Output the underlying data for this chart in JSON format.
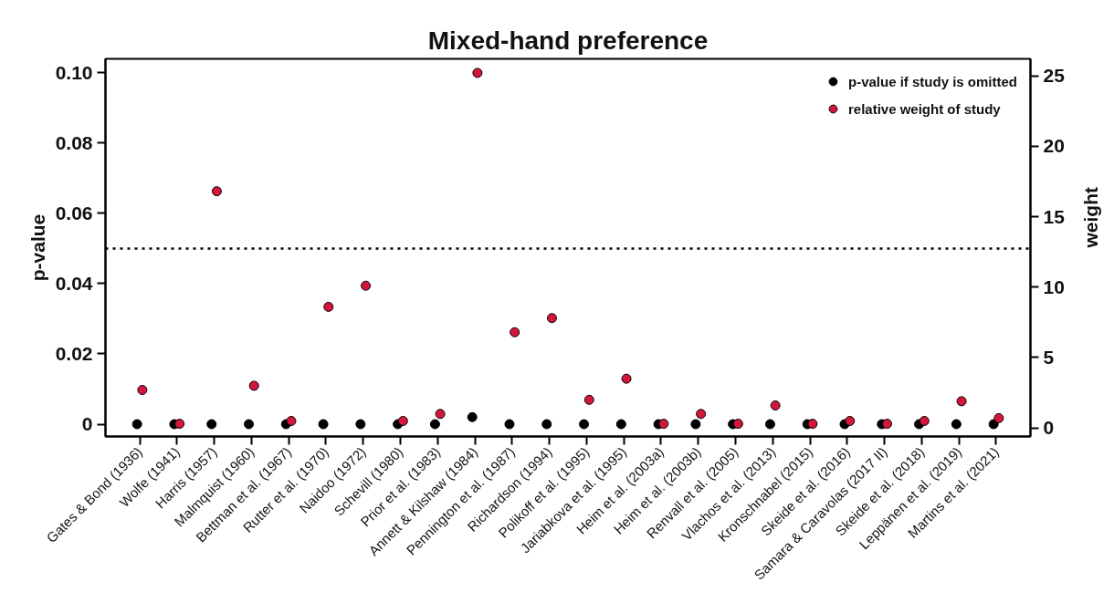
{
  "chart_data": {
    "type": "scatter",
    "title": "Mixed-hand preference",
    "ylabel": "p-value",
    "y2label": "weight",
    "categories": [
      "Gates & Bond (1936)",
      "Wolfe (1941)",
      "Harris (1957)",
      "Malmquist (1960)",
      "Bettman et al. (1967)",
      "Rutter et al. (1970)",
      "Naidoo (1972)",
      "Schevill (1980)",
      "Prior et al. (1983)",
      "Annett & Kilshaw (1984)",
      "Pennington et al. (1987)",
      "Richardson (1994)",
      "Polikoff et al. (1995)",
      "Jariabkova et al. (1995)",
      "Heim et al. (2003a)",
      "Heim et al. (2003b)",
      "Renvall et al. (2005)",
      "Vlachos et al. (2013)",
      "Kronschnabel (2015)",
      "Skeide et al. (2016)",
      "Samara & Caravolas (2017 II)",
      "Skeide et al. (2018)",
      "Leppänen et al. (2019)",
      "Martins et al. (2021)"
    ],
    "series": [
      {
        "name": "p-value if study is omitted",
        "color": "#000000",
        "values": [
          0,
          0,
          0,
          0,
          0,
          0,
          0,
          0,
          0,
          0.002,
          0,
          0,
          0,
          0,
          0,
          0,
          0,
          0,
          0,
          0,
          0,
          0,
          0,
          0
        ]
      },
      {
        "name": "relative weight of study",
        "color": "#d4163c",
        "axis": "y2",
        "values": [
          2.7,
          0.3,
          16.8,
          3.0,
          0.5,
          8.6,
          10.1,
          0.5,
          1.0,
          25.2,
          6.8,
          7.8,
          2.0,
          3.5,
          0.3,
          1.0,
          0.3,
          1.6,
          0.3,
          0.5,
          0.3,
          0.5,
          1.9,
          0.7
        ]
      }
    ],
    "ylim": [
      -0.0035,
      0.104
    ],
    "yticks": [
      0,
      0.02,
      0.04,
      0.06,
      0.08,
      {
        "value": 0.1,
        "label": "0.10"
      }
    ],
    "y2lim": [
      -0.6,
      26.2
    ],
    "y2ticks": [
      0,
      5,
      10,
      15,
      20,
      25
    ],
    "ref_lines": [
      {
        "axis": "y",
        "value": 0.05,
        "color": "#000000",
        "line_style": "dotted"
      }
    ],
    "legend": "top right",
    "marker": "circle"
  }
}
